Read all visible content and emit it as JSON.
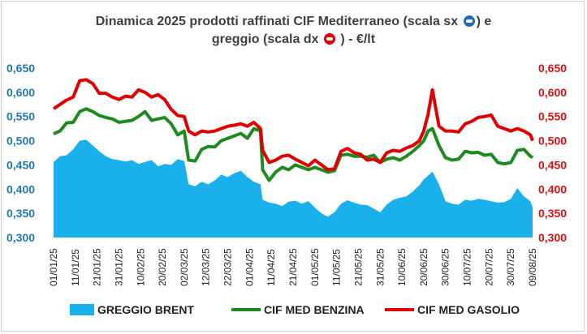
{
  "chart_data": {
    "type": "line",
    "title_line1": "Dinamica 2025 prodotti raffinati CIF Mediterraneo (scala sx",
    "title_mid": ") e",
    "title_line2a": "greggio (scala dx",
    "title_line2b": ") - €/lt",
    "y_left": {
      "min": 0.3,
      "max": 0.65,
      "ticks": [
        "0,300",
        "0,350",
        "0,400",
        "0,450",
        "0,500",
        "0,550",
        "0,600",
        "0,650"
      ],
      "color": "#1f7ab8"
    },
    "y_right": {
      "min": 0.3,
      "max": 0.65,
      "ticks": [
        "0,300",
        "0,350",
        "0,400",
        "0,450",
        "0,500",
        "0,550",
        "0,600",
        "0,650"
      ],
      "color": "#e01010"
    },
    "x_ticks": [
      "01/01/25",
      "11/01/25",
      "21/01/25",
      "31/01/25",
      "10/02/25",
      "20/02/25",
      "02/03/25",
      "12/03/25",
      "22/03/25",
      "01/04/25",
      "11/04/25",
      "21/04/25",
      "01/05/25",
      "11/05/25",
      "21/05/25",
      "31/05/25",
      "10/06/25",
      "20/06/25",
      "30/06/25",
      "10/07/25",
      "20/07/25",
      "30/07/25",
      "09/08/25"
    ],
    "series": [
      {
        "name": "GREGGIO BRENT",
        "kind": "area",
        "axis": "right",
        "color": "#1ab0ec",
        "days": [
          0,
          3,
          6,
          9,
          12,
          15,
          18,
          21,
          24,
          27,
          30,
          33,
          36,
          39,
          42,
          45,
          48,
          51,
          54,
          57,
          60,
          62,
          65,
          68,
          71,
          74,
          77,
          80,
          83,
          86,
          89,
          92,
          95,
          96,
          99,
          102,
          105,
          108,
          111,
          114,
          117,
          120,
          123,
          126,
          129,
          132,
          135,
          138,
          141,
          144,
          147,
          150,
          153,
          156,
          159,
          162,
          165,
          168,
          170,
          172,
          174,
          177,
          180,
          183,
          186,
          189,
          192,
          195,
          198,
          201,
          204,
          207,
          210,
          213,
          216,
          219,
          220
        ],
        "values": [
          0.456,
          0.468,
          0.47,
          0.482,
          0.5,
          0.502,
          0.49,
          0.478,
          0.468,
          0.462,
          0.46,
          0.457,
          0.46,
          0.452,
          0.456,
          0.46,
          0.447,
          0.452,
          0.45,
          0.462,
          0.458,
          0.41,
          0.406,
          0.415,
          0.41,
          0.418,
          0.43,
          0.425,
          0.433,
          0.438,
          0.425,
          0.415,
          0.41,
          0.378,
          0.372,
          0.37,
          0.365,
          0.374,
          0.376,
          0.37,
          0.375,
          0.362,
          0.35,
          0.343,
          0.352,
          0.37,
          0.377,
          0.372,
          0.368,
          0.367,
          0.36,
          0.352,
          0.368,
          0.378,
          0.382,
          0.385,
          0.395,
          0.408,
          0.42,
          0.428,
          0.436,
          0.41,
          0.375,
          0.37,
          0.368,
          0.378,
          0.376,
          0.38,
          0.378,
          0.375,
          0.372,
          0.373,
          0.38,
          0.402,
          0.385,
          0.375,
          0.362
        ]
      },
      {
        "name": "CIF MED BENZINA",
        "kind": "line",
        "axis": "left",
        "color": "#1f8a1f",
        "days": [
          0,
          3,
          6,
          9,
          12,
          15,
          18,
          21,
          24,
          27,
          30,
          33,
          36,
          39,
          42,
          45,
          48,
          51,
          54,
          57,
          60,
          62,
          65,
          68,
          71,
          74,
          77,
          80,
          83,
          86,
          89,
          92,
          95,
          96,
          99,
          102,
          105,
          108,
          111,
          114,
          117,
          120,
          123,
          126,
          129,
          132,
          135,
          138,
          141,
          144,
          147,
          150,
          153,
          156,
          159,
          162,
          165,
          168,
          170,
          172,
          174,
          177,
          180,
          183,
          186,
          189,
          192,
          195,
          198,
          201,
          204,
          207,
          210,
          213,
          216,
          219,
          220
        ],
        "values": [
          0.514,
          0.52,
          0.537,
          0.538,
          0.56,
          0.566,
          0.56,
          0.552,
          0.548,
          0.545,
          0.538,
          0.54,
          0.542,
          0.55,
          0.56,
          0.542,
          0.545,
          0.548,
          0.535,
          0.512,
          0.52,
          0.46,
          0.458,
          0.482,
          0.488,
          0.487,
          0.5,
          0.505,
          0.51,
          0.515,
          0.505,
          0.525,
          0.52,
          0.44,
          0.418,
          0.435,
          0.445,
          0.44,
          0.45,
          0.445,
          0.44,
          0.445,
          0.44,
          0.435,
          0.438,
          0.47,
          0.472,
          0.468,
          0.468,
          0.466,
          0.47,
          0.455,
          0.462,
          0.465,
          0.46,
          0.468,
          0.478,
          0.49,
          0.5,
          0.52,
          0.525,
          0.49,
          0.465,
          0.46,
          0.462,
          0.478,
          0.475,
          0.476,
          0.47,
          0.472,
          0.455,
          0.452,
          0.455,
          0.48,
          0.482,
          0.468,
          0.465
        ]
      },
      {
        "name": "CIF MED GASOLIO",
        "kind": "line",
        "axis": "left",
        "color": "#e00000",
        "days": [
          0,
          3,
          6,
          9,
          12,
          15,
          18,
          21,
          24,
          27,
          30,
          33,
          36,
          39,
          42,
          45,
          48,
          51,
          54,
          57,
          60,
          62,
          65,
          68,
          71,
          74,
          77,
          80,
          83,
          86,
          89,
          92,
          95,
          96,
          99,
          102,
          105,
          108,
          111,
          114,
          117,
          120,
          123,
          126,
          129,
          132,
          135,
          138,
          141,
          144,
          147,
          150,
          153,
          156,
          159,
          162,
          165,
          168,
          170,
          172,
          174,
          177,
          180,
          183,
          186,
          189,
          192,
          195,
          198,
          201,
          204,
          207,
          210,
          213,
          216,
          219,
          220
        ],
        "values": [
          0.566,
          0.575,
          0.584,
          0.59,
          0.624,
          0.626,
          0.618,
          0.598,
          0.598,
          0.59,
          0.585,
          0.592,
          0.59,
          0.605,
          0.6,
          0.59,
          0.595,
          0.585,
          0.565,
          0.552,
          0.55,
          0.52,
          0.512,
          0.52,
          0.518,
          0.52,
          0.525,
          0.53,
          0.532,
          0.535,
          0.53,
          0.538,
          0.525,
          0.48,
          0.455,
          0.46,
          0.468,
          0.47,
          0.462,
          0.455,
          0.448,
          0.46,
          0.45,
          0.44,
          0.442,
          0.478,
          0.484,
          0.475,
          0.472,
          0.46,
          0.462,
          0.455,
          0.475,
          0.48,
          0.478,
          0.485,
          0.49,
          0.5,
          0.52,
          0.555,
          0.605,
          0.53,
          0.52,
          0.52,
          0.518,
          0.535,
          0.54,
          0.548,
          0.55,
          0.553,
          0.53,
          0.525,
          0.52,
          0.525,
          0.52,
          0.512,
          0.5
        ]
      }
    ],
    "legend_position": "bottom",
    "grid": false
  }
}
